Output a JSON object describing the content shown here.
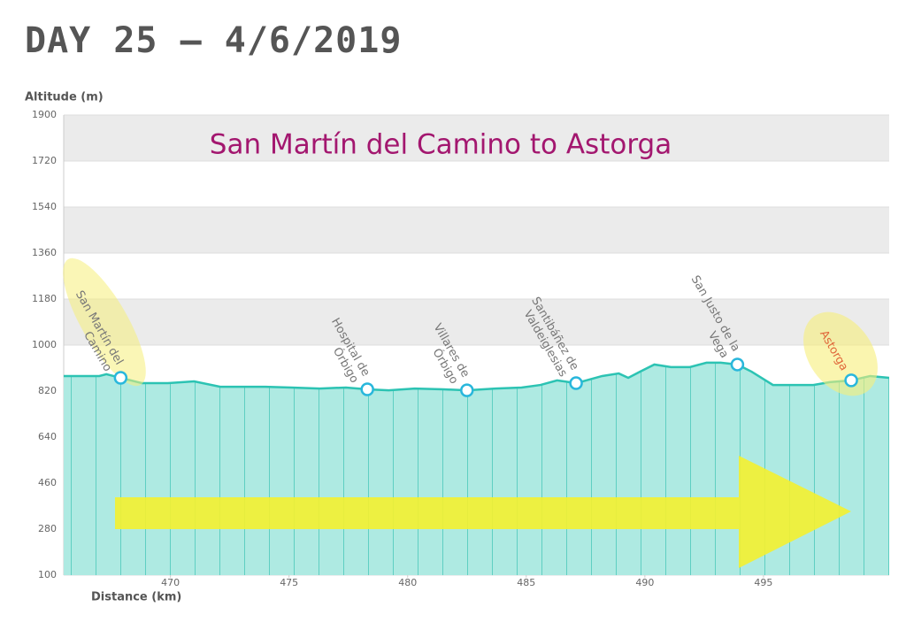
{
  "chart_data": {
    "type": "area",
    "title": "DAY 25 — 4/6/2019",
    "subtitle": "San Martín del Camino to Astorga",
    "y_label": "Altitude (m)",
    "x_label": "Distance (km)",
    "x": [
      465.5,
      467.0,
      467.3,
      467.9,
      468.8,
      469.9,
      471.0,
      472.1,
      474.0,
      475.1,
      476.3,
      477.4,
      478.3,
      479.2,
      480.3,
      481.5,
      482.5,
      483.7,
      484.8,
      485.6,
      486.3,
      487.1,
      488.2,
      488.9,
      489.3,
      489.8,
      490.4,
      491.1,
      491.9,
      492.6,
      493.2,
      493.9,
      494.5,
      495.4,
      497.1,
      497.8,
      498.7,
      499.5,
      500.3
    ],
    "values": [
      879,
      879,
      886,
      872,
      851,
      851,
      858,
      837,
      837,
      834,
      830,
      834,
      827,
      823,
      830,
      827,
      823,
      830,
      834,
      844,
      862,
      851,
      879,
      889,
      872,
      896,
      924,
      914,
      914,
      931,
      931,
      924,
      896,
      844,
      844,
      855,
      862,
      879,
      872
    ],
    "color": "#2cc3b3",
    "fill": "#aeeae2",
    "xlim": [
      465.5,
      500.3
    ],
    "xticks": [
      470,
      475,
      480,
      485,
      490,
      495
    ],
    "ylim": [
      100,
      1900
    ],
    "yticks": [
      100,
      280,
      460,
      640,
      820,
      1000,
      1180,
      1360,
      1540,
      1720,
      1900
    ],
    "grid": true,
    "waypoints": [
      {
        "label": [
          "San Martín del",
          "Camino"
        ],
        "x": 467.9,
        "value": 872,
        "label_color": "#777777"
      },
      {
        "label": [
          "Hospital de",
          "Órbigo"
        ],
        "x": 478.3,
        "value": 827,
        "label_color": "#777777"
      },
      {
        "label": [
          "Villares de",
          "Órbigo"
        ],
        "x": 482.5,
        "value": 823,
        "label_color": "#777777"
      },
      {
        "label": [
          "Santibáñez de",
          "Valdeiglesias"
        ],
        "x": 487.1,
        "value": 851,
        "label_color": "#777777"
      },
      {
        "label": [
          "San Justo de la",
          "Vega"
        ],
        "x": 493.9,
        "value": 924,
        "label_color": "#777777"
      },
      {
        "label": [
          "Astorga"
        ],
        "x": 498.7,
        "value": 862,
        "label_color": "#e0673a"
      }
    ]
  }
}
